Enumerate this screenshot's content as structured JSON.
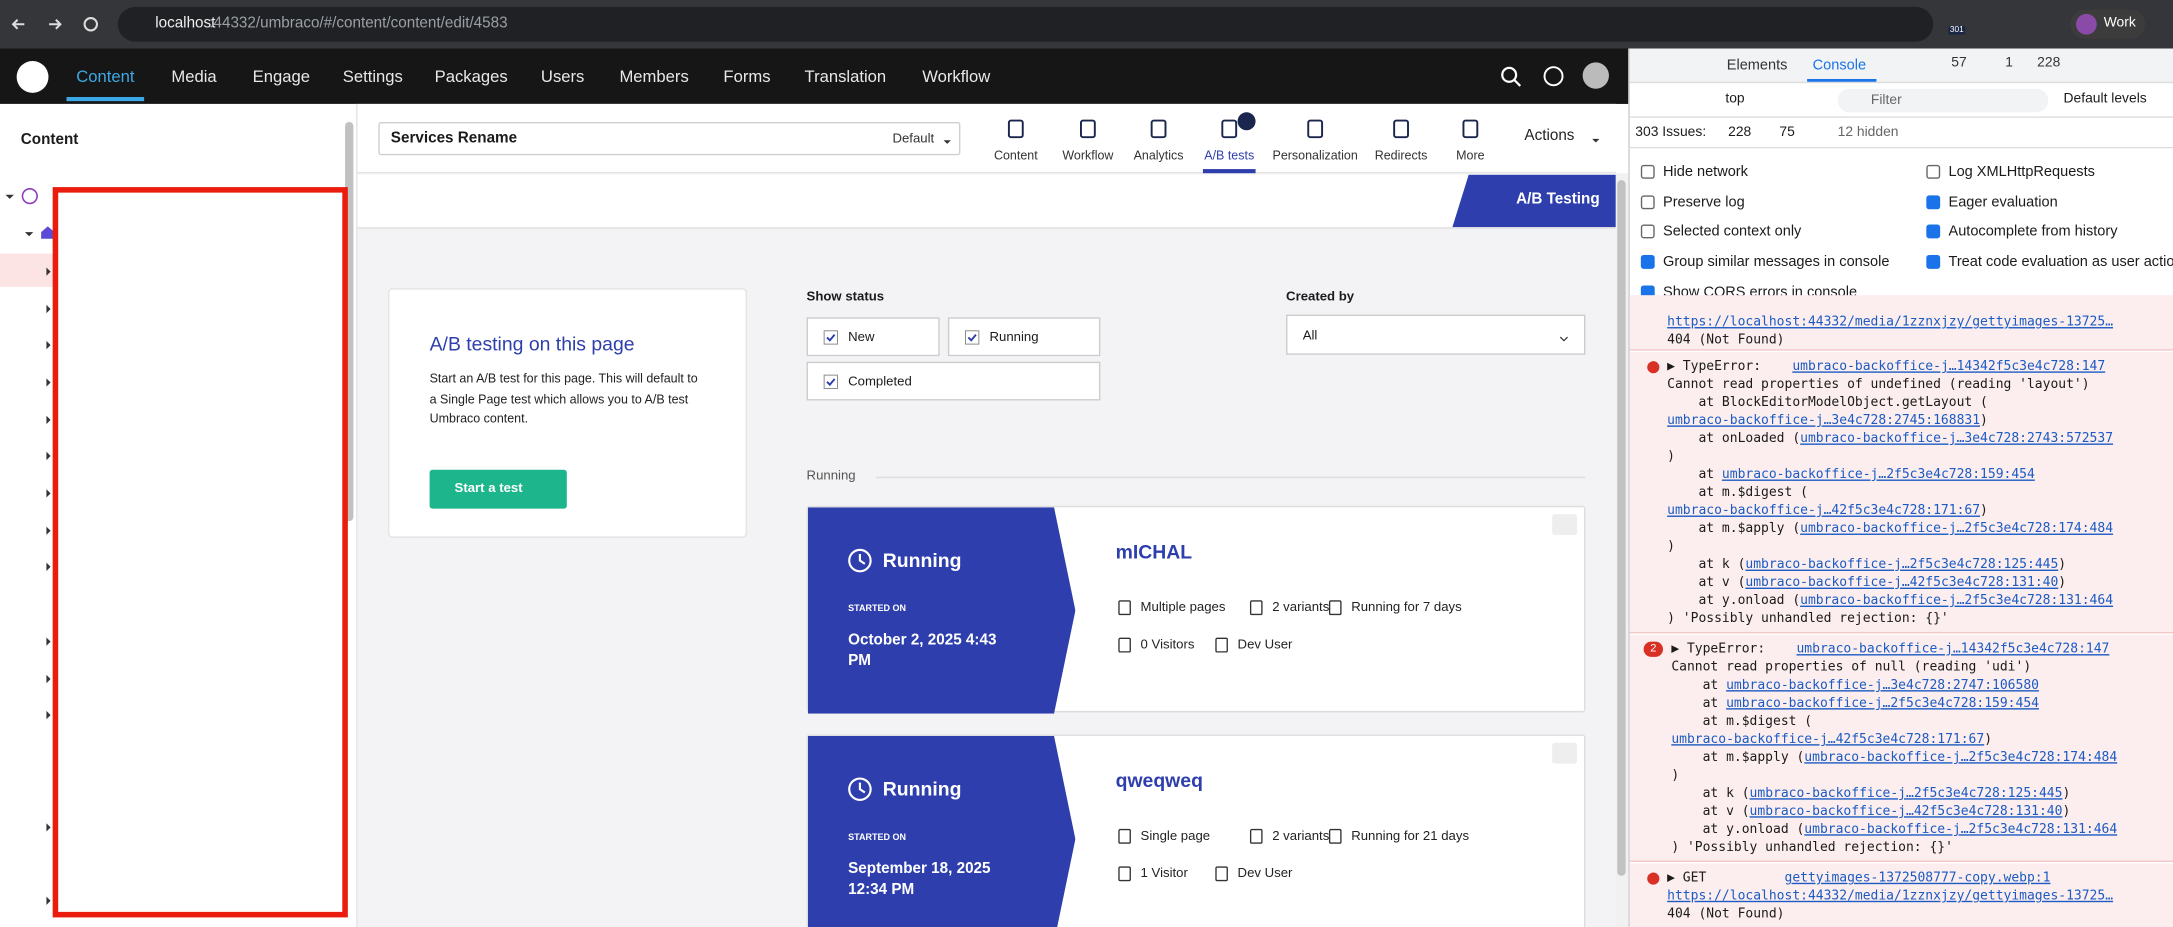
{
  "browser": {
    "url_host": "localhost",
    "url_rest": ":44332/umbraco/#/content/content/edit/4583",
    "badge": "301",
    "profile": "Work"
  },
  "nav": {
    "items": [
      "Content",
      "Media",
      "Engage",
      "Settings",
      "Packages",
      "Users",
      "Members",
      "Forms",
      "Translation",
      "Workflow"
    ]
  },
  "tree": {
    "title": "Content"
  },
  "editor": {
    "name": "Services Rename",
    "culture": "Default",
    "apps": [
      "Content",
      "Workflow",
      "Analytics",
      "A/B tests",
      "Personalization",
      "Redirects",
      "More"
    ],
    "actions": "Actions",
    "tab": "A/B Testing"
  },
  "intro": {
    "title": "A/B testing on this page",
    "text": "Start an A/B test for this page. This will default to a Single Page test which allows you to A/B test Umbraco content.",
    "button": "Start a test"
  },
  "filters": {
    "status_label": "Show status",
    "statuses": [
      "New",
      "Running",
      "Completed"
    ],
    "created_label": "Created by",
    "created_value": "All"
  },
  "section": "Running",
  "tests": [
    {
      "status": "Running",
      "started_label": "STARTED ON",
      "date": "October 2, 2025 4:43 PM",
      "name": "mICHAL",
      "pages": "Multiple pages",
      "variants": "2 variants",
      "duration": "Running for 7 days",
      "visitors": "0 Visitors",
      "user": "Dev User"
    },
    {
      "status": "Running",
      "started_label": "STARTED ON",
      "date": "September 18, 2025 12:34 PM",
      "name": "qweqweq",
      "pages": "Single page",
      "variants": "2 variants",
      "duration": "Running for 21 days",
      "visitors": "1 Visitor",
      "user": "Dev User"
    }
  ],
  "devtools": {
    "tabs": [
      "Elements",
      "Console"
    ],
    "errors": "57",
    "warnings": "1",
    "issues_count": "228",
    "context": "top",
    "filter": "Filter",
    "levels": "Default levels",
    "issues_label": "303 Issues:",
    "issues_errors": "228",
    "issues_info": "75",
    "hidden": "12 hidden",
    "settings": [
      "Hide network",
      "Log XMLHttpRequests",
      "Preserve log",
      "Eager evaluation",
      "Selected context only",
      "Autocomplete from history",
      "Group similar messages in console",
      "Treat code evaluation as user action",
      "Show CORS errors in console"
    ],
    "messages": [
      {
        "lines": [
          [
            {
              "link": "https://localhost:44332/media/1zznxjzy/gettyimages-13725…"
            }
          ],
          [
            "404 (Not Found)"
          ]
        ]
      },
      {
        "lines": [
          [
            "▶ TypeError:    ",
            {
              "link": "umbraco-backoffice-j…14342f5c3e4c728:147"
            }
          ],
          [
            "Cannot read properties of undefined (reading 'layout')"
          ],
          [
            "    at BlockEditorModelObject.getLayout ("
          ],
          [
            {
              "link": "umbraco-backoffice-j…3e4c728:2745:168831"
            },
            ")"
          ],
          [
            "    at onLoaded (",
            {
              "link": "umbraco-backoffice-j…3e4c728:2743:572537"
            }
          ],
          [
            ")"
          ],
          [
            "    at ",
            {
              "link": "umbraco-backoffice-j…2f5c3e4c728:159:454"
            }
          ],
          [
            "    at m.$digest ("
          ],
          [
            {
              "link": "umbraco-backoffice-j…42f5c3e4c728:171:67"
            },
            ")"
          ],
          [
            "    at m.$apply (",
            {
              "link": "umbraco-backoffice-j…2f5c3e4c728:174:484"
            }
          ],
          [
            ")"
          ],
          [
            "    at k (",
            {
              "link": "umbraco-backoffice-j…2f5c3e4c728:125:445"
            },
            ")"
          ],
          [
            "    at v (",
            {
              "link": "umbraco-backoffice-j…42f5c3e4c728:131:40"
            },
            ")"
          ],
          [
            "    at y.onload (",
            {
              "link": "umbraco-backoffice-j…2f5c3e4c728:131:464"
            }
          ],
          [
            ") 'Possibly unhandled rejection: {}'"
          ]
        ]
      },
      {
        "count": "2",
        "lines": [
          [
            "▶ TypeError:    ",
            {
              "link": "umbraco-backoffice-j…14342f5c3e4c728:147"
            }
          ],
          [
            "Cannot read properties of null (reading 'udi')"
          ],
          [
            "    at ",
            {
              "link": "umbraco-backoffice-j…3e4c728:2747:106580"
            }
          ],
          [
            "    at ",
            {
              "link": "umbraco-backoffice-j…2f5c3e4c728:159:454"
            }
          ],
          [
            "    at m.$digest ("
          ],
          [
            {
              "link": "umbraco-backoffice-j…42f5c3e4c728:171:67"
            },
            ")"
          ],
          [
            "    at m.$apply (",
            {
              "link": "umbraco-backoffice-j…2f5c3e4c728:174:484"
            }
          ],
          [
            ")"
          ],
          [
            "    at k (",
            {
              "link": "umbraco-backoffice-j…2f5c3e4c728:125:445"
            },
            ")"
          ],
          [
            "    at v (",
            {
              "link": "umbraco-backoffice-j…42f5c3e4c728:131:40"
            },
            ")"
          ],
          [
            "    at y.onload (",
            {
              "link": "umbraco-backoffice-j…2f5c3e4c728:131:464"
            }
          ],
          [
            ") 'Possibly unhandled rejection: {}'"
          ]
        ]
      },
      {
        "lines": [
          [
            "▶ GET          ",
            {
              "link": "gettyimages-1372508777-copy.webp:1"
            }
          ],
          [
            {
              "link": "https://localhost:44332/media/1zznxjzy/gettyimages-13725…"
            }
          ],
          [
            "404 (Not Found)"
          ]
        ]
      }
    ]
  }
}
